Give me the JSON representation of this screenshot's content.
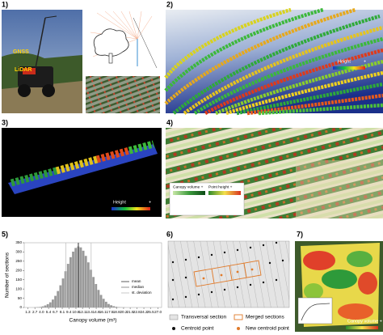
{
  "panels": {
    "p1": {
      "label": "1)",
      "gnss": "GNSS",
      "lidar": "LiDAR"
    },
    "p2": {
      "label": "2)",
      "legend_title": "Height",
      "legend_plus": "+"
    },
    "p3": {
      "label": "3)",
      "legend_title": "Height",
      "legend_plus": "+"
    },
    "p4": {
      "label": "4)",
      "legend_volume": "Canopy volume +",
      "legend_height": "Point height +"
    },
    "p5": {
      "label": "5)"
    },
    "p6": {
      "label": "6)",
      "legend": [
        "Transversal section",
        "Merged sections",
        "Centroid point",
        "New centroid point"
      ]
    },
    "p7": {
      "label": "7)",
      "legend_volume": "Canopy volume +"
    }
  },
  "chart_data": {
    "type": "histogram",
    "x_label": "Canopy volume (m³)",
    "y_label": "Number of sections",
    "bins": [
      2.0,
      2.5,
      3.0,
      3.5,
      4.0,
      4.5,
      5.0,
      5.5,
      6.0,
      6.5,
      7.0,
      7.5,
      8.0,
      8.5,
      9.0,
      9.5,
      10.0,
      10.5,
      11.0,
      11.5,
      12.0,
      12.5,
      13.0,
      13.5,
      14.0,
      14.5,
      15.0,
      15.5,
      16.0,
      16.5,
      17.0,
      17.5,
      18.0,
      18.5,
      19.0,
      19.5,
      20.0,
      20.5,
      21.0
    ],
    "values": [
      0,
      1,
      2,
      3,
      6,
      11,
      18,
      28,
      43,
      63,
      89,
      120,
      157,
      196,
      236,
      272,
      302,
      322,
      330,
      325,
      307,
      279,
      244,
      204,
      165,
      127,
      95,
      68,
      47,
      31,
      19,
      12,
      7,
      4,
      2,
      1,
      1,
      0
    ],
    "color": "#9a9a9a",
    "xlim": [
      0.6,
      27.7
    ],
    "xticks": [
      1.3,
      2.7,
      {
        "value": 4,
        "label": "4.0"
      },
      5.4,
      6.7,
      8.1,
      9.4,
      10.8,
      12.1,
      13.4,
      14.8,
      16.1,
      17.5,
      18.8,
      20.2,
      21.5,
      22.8,
      24.2,
      25.5,
      {
        "value": 27,
        "label": "27.0"
      }
    ],
    "ylim": [
      0,
      350
    ],
    "yticks": [
      0,
      50,
      100,
      150,
      200,
      250,
      300,
      350
    ],
    "reference_lines": [
      {
        "name": "mean",
        "color": "#333333",
        "values": [
          11.3
        ]
      },
      {
        "name": "median",
        "color": "#777777",
        "values": [
          11.2
        ]
      },
      {
        "name": "st. deviation",
        "color": "#bbbbbb",
        "values": [
          8.8,
          13.8
        ]
      }
    ]
  }
}
